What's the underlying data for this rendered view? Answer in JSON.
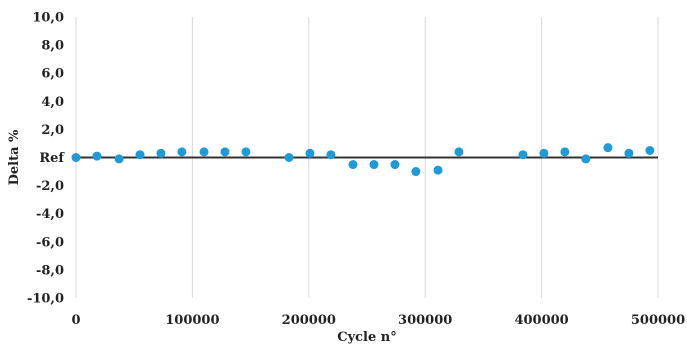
{
  "chart_data": {
    "type": "scatter",
    "title": "",
    "xlabel": "Cycle n°",
    "ylabel": "Delta %",
    "xlim": [
      0,
      500000
    ],
    "ylim": [
      -10,
      10
    ],
    "x_ticks": [
      0,
      100000,
      200000,
      300000,
      400000,
      500000
    ],
    "x_tick_labels": [
      "0",
      "100000",
      "200000",
      "300000",
      "400000",
      "500000"
    ],
    "y_ticks": [
      10,
      8,
      6,
      4,
      2,
      0,
      -2,
      -4,
      -6,
      -8,
      -10
    ],
    "y_tick_labels": [
      "10,0",
      "8,0",
      "6,0",
      "4,0",
      "2,0",
      "Ref",
      "-2,0",
      "-4,0",
      "-6,0",
      "-8,0",
      "-10,0"
    ],
    "grid": "vertical",
    "reference_line": 0,
    "colors": {
      "points": "#1f9ad8",
      "reference_line": "#333333",
      "grid": "#d9d9d9"
    },
    "series": [
      {
        "x": [
          0,
          18000,
          37000,
          55000,
          73000,
          91000,
          110000,
          128000,
          146000,
          183000,
          201000,
          219000,
          238000,
          256000,
          274000,
          292000,
          311000,
          329000,
          384000,
          402000,
          420000,
          438000,
          457000,
          475000,
          493000
        ],
        "y": [
          0.0,
          0.1,
          -0.1,
          0.2,
          0.3,
          0.4,
          0.4,
          0.4,
          0.4,
          0.0,
          0.3,
          0.2,
          -0.5,
          -0.5,
          -0.5,
          -1.0,
          -0.9,
          0.4,
          0.2,
          0.3,
          0.4,
          -0.1,
          0.7,
          0.3,
          0.5
        ]
      }
    ]
  }
}
